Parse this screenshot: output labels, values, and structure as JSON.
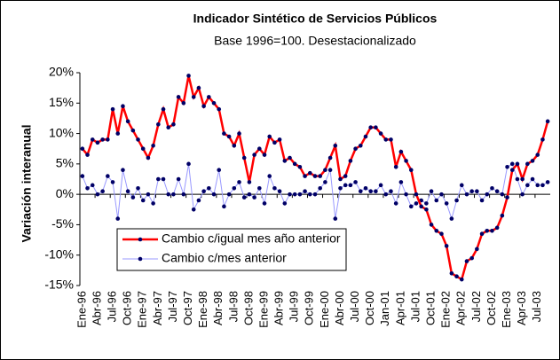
{
  "chart_data": {
    "type": "line",
    "title": "Indicador Sintético de Servicios Públicos",
    "subtitle": "Base 1996=100. Desestacionalizado",
    "y_label": "Variación interanual",
    "categories": [
      "Ene-96",
      null,
      null,
      "Abr-96",
      null,
      null,
      "Jul-96",
      null,
      null,
      "Oct-96",
      null,
      null,
      "Ene-97",
      null,
      null,
      "Abr-97",
      null,
      null,
      "Jul-97",
      null,
      null,
      "Oct-97",
      null,
      null,
      "Ene-98",
      null,
      null,
      "Abr-98",
      null,
      null,
      "Jul-98",
      null,
      null,
      "Oct-98",
      null,
      null,
      "Ene-99",
      null,
      null,
      "Abr-99",
      null,
      null,
      "Jul-99",
      null,
      null,
      "Oct-99",
      null,
      null,
      "Ene-00",
      null,
      null,
      "Abr-00",
      null,
      null,
      "Jul-00",
      null,
      null,
      "Oct-00",
      null,
      null,
      "Jan-01",
      null,
      null,
      "Apr-01",
      null,
      null,
      "Jul-01",
      null,
      null,
      "Oct-01",
      null,
      null,
      "Ene-02",
      null,
      null,
      "Apr-02",
      null,
      null,
      "Jul-02",
      null,
      null,
      "Oct-02",
      null,
      null,
      "Ene-03",
      null,
      null,
      "Apr-03",
      null,
      null,
      "Jul-03",
      null,
      null
    ],
    "series": [
      {
        "name": "Cambio c/igual mes año anterior",
        "color": "#ff0000",
        "marker_color": "#000066",
        "values": [
          7.5,
          6.5,
          9,
          8.5,
          9,
          9,
          14,
          10,
          14.5,
          12,
          10.5,
          9,
          7.5,
          6,
          8,
          11.5,
          14,
          11,
          11.5,
          16,
          15,
          19.5,
          16,
          17.5,
          14.5,
          16,
          15,
          14,
          10,
          9.5,
          8,
          10,
          6,
          2,
          6.5,
          7.5,
          6.5,
          9.5,
          8.5,
          9,
          5.5,
          6,
          5,
          4.5,
          3,
          3.5,
          3,
          3,
          4,
          6,
          8,
          2.5,
          3,
          5.5,
          7.5,
          8,
          9.5,
          11,
          11,
          10,
          9,
          9,
          4.5,
          7,
          5.5,
          4,
          0,
          -2,
          -2.5,
          -5,
          -6,
          -6.5,
          -8.5,
          -13,
          -13.5,
          -14,
          -11,
          -10.5,
          -9,
          -6.5,
          -6,
          -6,
          -5.5,
          -3.5,
          -0.5,
          4,
          5,
          2.5,
          5,
          5.5,
          6.5,
          9,
          12
        ]
      },
      {
        "name": "Cambio c/mes anterior",
        "color": "#9999ff",
        "marker_color": "#000066",
        "values": [
          3,
          1,
          1.5,
          0,
          0.5,
          3,
          2,
          -4,
          4,
          0.5,
          -0.5,
          1,
          -1,
          0,
          -1.5,
          2.5,
          2.5,
          0,
          0,
          2.5,
          0,
          5,
          -2.5,
          -1,
          0.5,
          1,
          0,
          4,
          -2,
          0,
          1,
          2,
          -0.5,
          0,
          -0.5,
          1,
          -1.5,
          3,
          1,
          0.5,
          -1.5,
          0,
          0,
          0,
          0.5,
          0,
          0,
          1,
          2,
          4,
          -4,
          1,
          1.5,
          1.5,
          2,
          0.5,
          1,
          0.5,
          0.5,
          1.5,
          0,
          0.5,
          -1.5,
          2,
          0,
          -2,
          -1.5,
          -1,
          -1.5,
          0.5,
          -1,
          0,
          -1.5,
          -4,
          -1,
          1.5,
          0,
          0.5,
          0.5,
          -1,
          0,
          1,
          0.5,
          0,
          4.5,
          5,
          2.5,
          0,
          1.5,
          2.5,
          1.5,
          1.5,
          2
        ]
      }
    ],
    "ylim": [
      -15,
      20
    ],
    "yticks": [
      {
        "value": -15,
        "label": "-15%"
      },
      {
        "value": -10,
        "label": "-10%"
      },
      {
        "value": -5,
        "label": "-5%"
      },
      {
        "value": 0,
        "label": "0%"
      },
      {
        "value": 5,
        "label": "5%"
      },
      {
        "value": 10,
        "label": "10%"
      },
      {
        "value": 15,
        "label": "15%"
      },
      {
        "value": 20,
        "label": "20%"
      }
    ],
    "grid": false,
    "legend": "lower left"
  }
}
